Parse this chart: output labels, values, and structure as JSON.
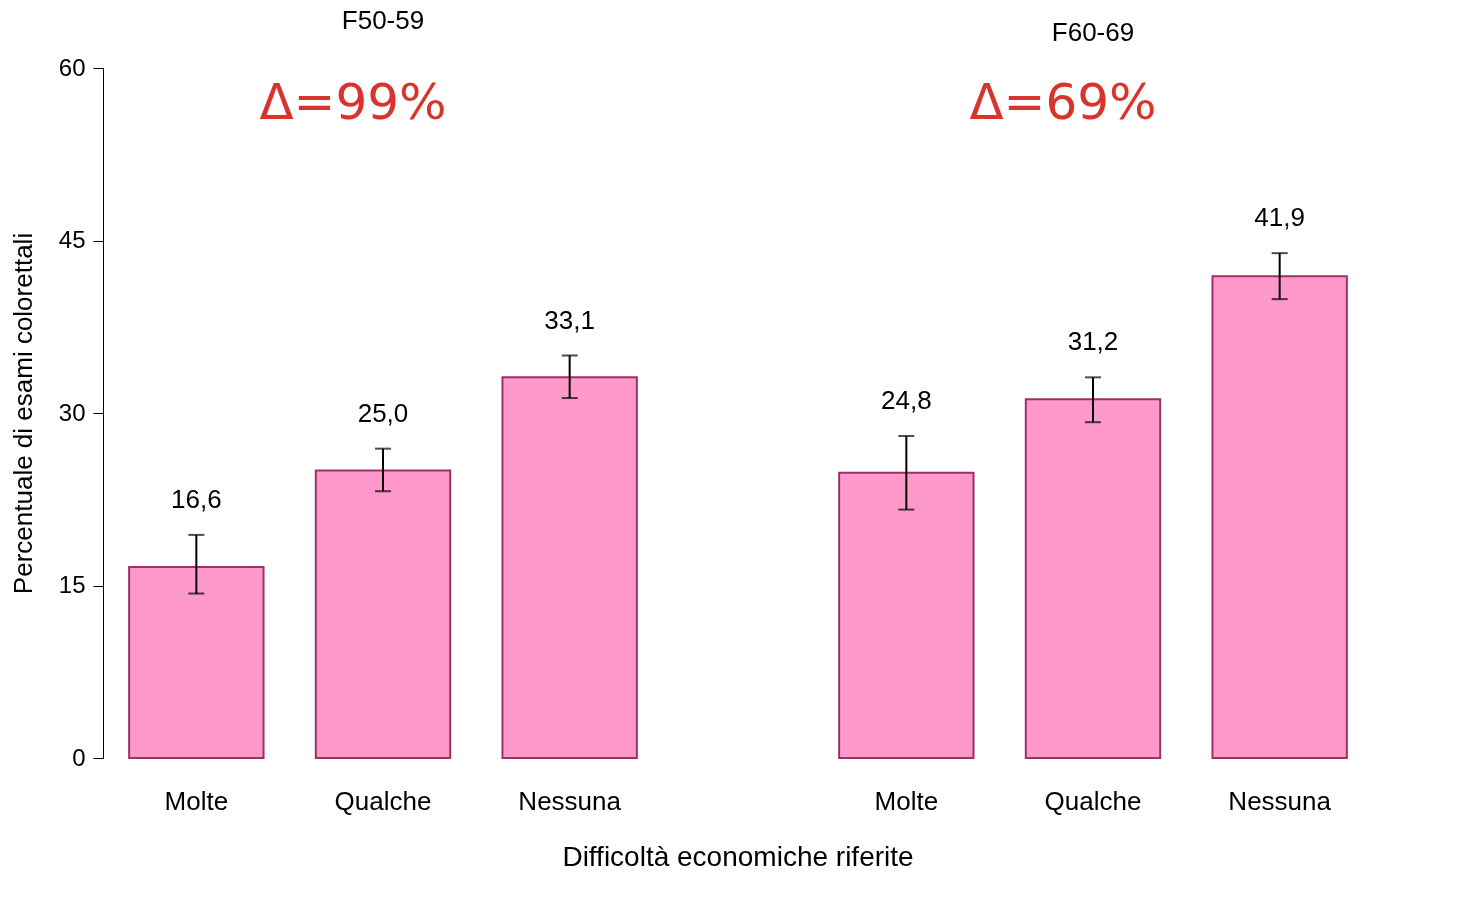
{
  "chart_data": [
    {
      "type": "bar",
      "title": "F50-59",
      "ylabel": "Percentuale di esami colorettali",
      "xlabel": "Difficoltà economiche riferite",
      "annotations": [
        "Δ=99%"
      ],
      "categories": [
        "Molte",
        "Qualche",
        "Nessuna"
      ],
      "values": [
        16.6,
        25.0,
        33.1
      ],
      "value_labels": [
        "16,6",
        "25,0",
        "33,1"
      ],
      "errors": [
        [
          14.3,
          19.4
        ],
        [
          23.2,
          26.9
        ],
        [
          31.3,
          35.0
        ]
      ],
      "color": "#ff99cc",
      "ylim": [
        0,
        60
      ],
      "yticks": [
        0,
        15,
        30,
        45,
        60
      ],
      "grid": false
    },
    {
      "type": "bar",
      "title": "F60-69",
      "annotations": [
        "Δ=69%"
      ],
      "categories": [
        "Molte",
        "Qualche",
        "Nessuna"
      ],
      "values": [
        24.8,
        31.2,
        41.9
      ],
      "value_labels": [
        "24,8",
        "31,2",
        "41,9"
      ],
      "errors": [
        [
          21.6,
          28.0
        ],
        [
          29.2,
          33.1
        ],
        [
          39.9,
          43.9
        ]
      ],
      "color": "#ff99cc",
      "ylim": [
        0,
        60
      ],
      "yticks": [
        0,
        15,
        30,
        45,
        60
      ],
      "grid": false,
      "tick_labels": "x"
    }
  ]
}
